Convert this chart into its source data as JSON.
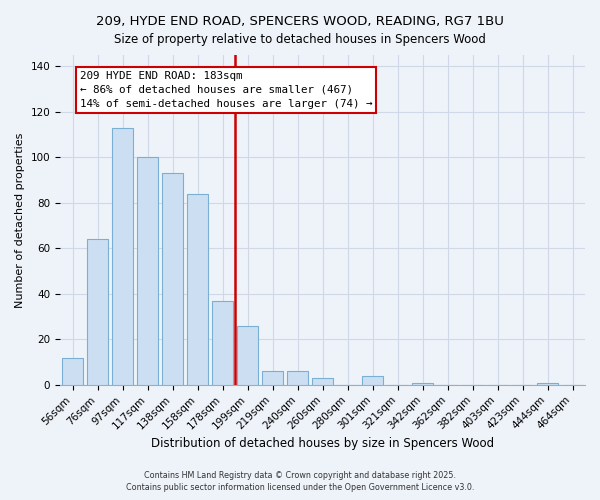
{
  "title1": "209, HYDE END ROAD, SPENCERS WOOD, READING, RG7 1BU",
  "title2": "Size of property relative to detached houses in Spencers Wood",
  "xlabel": "Distribution of detached houses by size in Spencers Wood",
  "ylabel": "Number of detached properties",
  "bar_labels": [
    "56sqm",
    "76sqm",
    "97sqm",
    "117sqm",
    "138sqm",
    "158sqm",
    "178sqm",
    "199sqm",
    "219sqm",
    "240sqm",
    "260sqm",
    "280sqm",
    "301sqm",
    "321sqm",
    "342sqm",
    "362sqm",
    "382sqm",
    "403sqm",
    "423sqm",
    "444sqm",
    "464sqm"
  ],
  "bar_values": [
    12,
    64,
    113,
    100,
    93,
    84,
    37,
    26,
    6,
    6,
    3,
    0,
    4,
    0,
    1,
    0,
    0,
    0,
    0,
    1,
    0
  ],
  "bar_color": "#ccdff2",
  "bar_edge_color": "#7aafd4",
  "vline_color": "#cc0000",
  "annotation_title": "209 HYDE END ROAD: 183sqm",
  "annotation_line1": "← 86% of detached houses are smaller (467)",
  "annotation_line2": "14% of semi-detached houses are larger (74) →",
  "annotation_box_color": "white",
  "annotation_box_edge": "#cc0000",
  "ylim": [
    0,
    145
  ],
  "yticks": [
    0,
    20,
    40,
    60,
    80,
    100,
    120,
    140
  ],
  "footer1": "Contains HM Land Registry data © Crown copyright and database right 2025.",
  "footer2": "Contains public sector information licensed under the Open Government Licence v3.0.",
  "bg_color": "#eef3fa",
  "grid_color": "#d0d8e8",
  "title1_fontsize": 9.5,
  "title2_fontsize": 8.5,
  "xlabel_fontsize": 8.5,
  "ylabel_fontsize": 8,
  "tick_fontsize": 7.5,
  "footer_fontsize": 5.8
}
